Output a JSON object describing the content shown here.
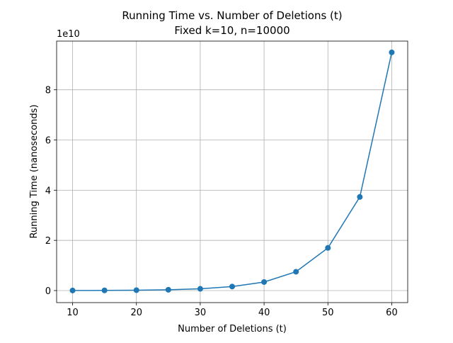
{
  "chart_data": {
    "type": "line",
    "title": "Running Time vs. Number of Deletions (t)",
    "subtitle": "Fixed k=10, n=10000",
    "xlabel": "Number of Deletions (t)",
    "ylabel": "Running Time (nanoseconds)",
    "y_offset_label": "1e10",
    "x": [
      10,
      15,
      20,
      25,
      30,
      35,
      40,
      45,
      50,
      55,
      60
    ],
    "series": [
      {
        "name": "Running Time",
        "color": "#1f77b4",
        "values": [
          30000000,
          70000000,
          150000000,
          320000000,
          700000000,
          1600000000,
          3400000000,
          7500000000,
          17000000000,
          37300000000,
          94900000000
        ]
      }
    ],
    "xlim": [
      7.5,
      62.5
    ],
    "xticks": [
      10,
      20,
      30,
      40,
      50,
      60
    ],
    "ylim": [
      -4800000000,
      99400000000
    ],
    "yticks": [
      {
        "value": 0,
        "label": "0"
      },
      {
        "value": 20000000000,
        "label": "2"
      },
      {
        "value": 40000000000,
        "label": "4"
      },
      {
        "value": 60000000000,
        "label": "6"
      },
      {
        "value": 80000000000,
        "label": "8"
      }
    ],
    "grid": true,
    "markers": true
  }
}
